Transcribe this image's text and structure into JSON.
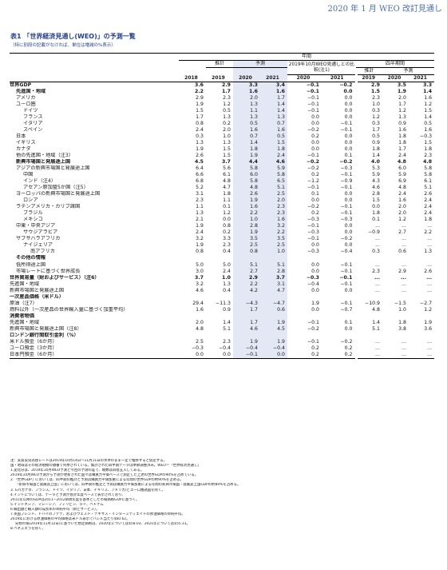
{
  "header_right": "2020 年 1 月 WEO 改訂見通し",
  "title": "表1 「世界経済見通し(WEO)」の予測一覧",
  "subtitle": "（特に別段の記載がなければ、単位は増減の%表示）",
  "head": {
    "year": "年間",
    "est": "推計",
    "proj": "予測",
    "diff": "2019年10月WEO見通しとの比較(注1)",
    "quarter": "四半期間",
    "qest": "推計",
    "qproj": "予測",
    "years": [
      "2018",
      "2019",
      "2020",
      "2021",
      "2020",
      "2021",
      "2019",
      "2020",
      "2021"
    ]
  },
  "rows": [
    {
      "label": "世界GDP",
      "indent": 0,
      "bold": true,
      "v": [
        "3.6",
        "2.9",
        "3.3",
        "3.4",
        "−0.1",
        "−0.2",
        "2.9",
        "3.5",
        "3.3"
      ]
    },
    {
      "label": "先進国・地域",
      "indent": 1,
      "bold": true,
      "v": [
        "2.2",
        "1.7",
        "1.6",
        "1.6",
        "−0.1",
        "0.0",
        "1.5",
        "1.9",
        "1.4"
      ]
    },
    {
      "label": "アメリカ",
      "indent": 1,
      "v": [
        "2.9",
        "2.3",
        "2.0",
        "1.7",
        "−0.1",
        "0.0",
        "2.3",
        "2.0",
        "1.6"
      ]
    },
    {
      "label": "ユーロ圏",
      "indent": 1,
      "v": [
        "1.9",
        "1.2",
        "1.3",
        "1.4",
        "−0.1",
        "0.0",
        "1.0",
        "1.7",
        "1.2"
      ]
    },
    {
      "label": "ドイツ",
      "indent": 2,
      "v": [
        "1.5",
        "0.5",
        "1.1",
        "1.4",
        "−0.1",
        "0.0",
        "0.3",
        "1.2",
        "1.5"
      ]
    },
    {
      "label": "フランス",
      "indent": 2,
      "v": [
        "1.7",
        "1.3",
        "1.3",
        "1.3",
        "0.0",
        "0.0",
        "1.2",
        "1.3",
        "1.4"
      ]
    },
    {
      "label": "イタリア",
      "indent": 2,
      "v": [
        "0.8",
        "0.2",
        "0.5",
        "0.7",
        "0.0",
        "−0.1",
        "0.3",
        "0.9",
        "0.5"
      ]
    },
    {
      "label": "スペイン",
      "indent": 2,
      "v": [
        "2.4",
        "2.0",
        "1.6",
        "1.6",
        "−0.2",
        "−0.1",
        "1.7",
        "1.6",
        "1.6"
      ]
    },
    {
      "label": "日本",
      "indent": 1,
      "v": [
        "0.3",
        "1.0",
        "0.7",
        "0.5",
        "0.2",
        "0.0",
        "0.5",
        "1.8",
        "−0.3"
      ]
    },
    {
      "label": "イギリス",
      "indent": 1,
      "v": [
        "1.3",
        "1.3",
        "1.4",
        "1.5",
        "0.0",
        "0.0",
        "0.9",
        "1.8",
        "1.5"
      ]
    },
    {
      "label": "カナダ",
      "indent": 1,
      "v": [
        "1.9",
        "1.5",
        "1.8",
        "1.8",
        "0.0",
        "0.0",
        "1.8",
        "1.7",
        "1.8"
      ]
    },
    {
      "label": "他の先進国・地域（注3）",
      "indent": 1,
      "v": [
        "2.6",
        "1.5",
        "1.9",
        "2.4",
        "−0.1",
        "0.1",
        "1.4",
        "2.4",
        "2.3"
      ]
    },
    {
      "label": "新興市場国と発展途上国",
      "indent": 1,
      "bold": true,
      "v": [
        "4.5",
        "3.7",
        "4.4",
        "4.6",
        "−0.2",
        "−0.2",
        "4.0",
        "4.8",
        "4.8"
      ]
    },
    {
      "label": "アジアの新興市場国と発展途上国",
      "indent": 1,
      "v": [
        "6.4",
        "5.6",
        "5.8",
        "5.9",
        "−0.2",
        "−0.3",
        "5.3",
        "6.0",
        "5.8"
      ]
    },
    {
      "label": "中国",
      "indent": 2,
      "v": [
        "6.6",
        "6.1",
        "6.0",
        "5.8",
        "0.2",
        "−0.1",
        "5.9",
        "5.9",
        "5.8"
      ]
    },
    {
      "label": "インド（注4）",
      "indent": 2,
      "v": [
        "6.8",
        "4.8",
        "5.8",
        "6.5",
        "−1.2",
        "−0.9",
        "4.3",
        "6.9",
        "6.1"
      ]
    },
    {
      "label": "アセアン原加盟5か国（注5）",
      "indent": 2,
      "v": [
        "5.2",
        "4.7",
        "4.8",
        "5.1",
        "−0.1",
        "−0.1",
        "4.6",
        "4.8",
        "5.1"
      ]
    },
    {
      "label": "ヨーロッパの新興市場国と発展途上国",
      "indent": 1,
      "v": [
        "3.1",
        "1.8",
        "2.6",
        "2.5",
        "0.1",
        "0.0",
        "2.8",
        "2.4",
        "2.6"
      ]
    },
    {
      "label": "ロシア",
      "indent": 2,
      "v": [
        "2.3",
        "1.1",
        "1.9",
        "2.0",
        "0.0",
        "0.0",
        "1.5",
        "1.6",
        "2.4"
      ]
    },
    {
      "label": "ラテンアメリカ・カリブ諸国",
      "indent": 1,
      "v": [
        "1.1",
        "0.1",
        "1.6",
        "2.3",
        "−0.2",
        "−0.1",
        "0.0",
        "2.0",
        "2.4"
      ]
    },
    {
      "label": "ブラジル",
      "indent": 2,
      "v": [
        "1.3",
        "1.2",
        "2.2",
        "2.3",
        "0.2",
        "−0.1",
        "1.8",
        "2.0",
        "2.4"
      ]
    },
    {
      "label": "メキシコ",
      "indent": 2,
      "v": [
        "2.1",
        "0.0",
        "1.0",
        "1.6",
        "−0.3",
        "−0.3",
        "0.1",
        "1.2",
        "1.8"
      ]
    },
    {
      "label": "中東・中央アジア",
      "indent": 1,
      "v": [
        "1.9",
        "0.8",
        "2.8",
        "3.2",
        "−0.1",
        "0.0",
        "...",
        "...",
        "..."
      ]
    },
    {
      "label": "サウジアラビア",
      "indent": 2,
      "v": [
        "2.4",
        "0.2",
        "1.9",
        "2.2",
        "−0.3",
        "0.0",
        "−0.9",
        "2.7",
        "2.2"
      ]
    },
    {
      "label": "サブサハラアフリカ",
      "indent": 1,
      "v": [
        "3.2",
        "3.3",
        "3.5",
        "3.5",
        "−0.1",
        "−0.2",
        "...",
        "...",
        "..."
      ]
    },
    {
      "label": "ナイジェリア",
      "indent": 2,
      "v": [
        "1.9",
        "2.3",
        "2.5",
        "2.5",
        "0.0",
        "0.0",
        "...",
        "...",
        "..."
      ]
    },
    {
      "label": "南アフリカ",
      "indent": 3,
      "v": [
        "0.8",
        "0.4",
        "0.8",
        "1.0",
        "−0.3",
        "−0.4",
        "0.3",
        "0.6",
        "1.3"
      ]
    },
    {
      "label": "その他の情報",
      "indent": 1,
      "bold": true,
      "v": [
        "",
        "",
        "",
        "",
        "",
        "",
        "",
        "",
        ""
      ]
    },
    {
      "label": "低所得途上国",
      "indent": 1,
      "v": [
        "5.0",
        "5.0",
        "5.1",
        "5.1",
        "0.0",
        "−0.1",
        "...",
        "...",
        "..."
      ]
    },
    {
      "label": "市場レートに基づく世界成長",
      "indent": 1,
      "v": [
        "3.0",
        "2.4",
        "2.7",
        "2.8",
        "0.0",
        "−0.1",
        "2.3",
        "2.9",
        "2.6"
      ]
    },
    {
      "label": "世界貿易量（財およびサービス）（注6）",
      "indent": 0,
      "bold": true,
      "v": [
        "3.7",
        "1.0",
        "2.9",
        "3.7",
        "−0.3",
        "−0.1",
        "...",
        "...",
        "..."
      ]
    },
    {
      "label": "先進国・地域",
      "indent": 0,
      "v": [
        "3.2",
        "1.3",
        "2.2",
        "3.1",
        "−0.4",
        "−0.1",
        "...",
        "...",
        "..."
      ]
    },
    {
      "label": "新興市場国と発展途上国",
      "indent": 0,
      "v": [
        "4.6",
        "0.4",
        "4.2",
        "4.7",
        "0.0",
        "0.0",
        "...",
        "...",
        "..."
      ]
    },
    {
      "label": "一次産品価格（米ドル）",
      "indent": 0,
      "bold": true,
      "v": [
        "",
        "",
        "",
        "",
        "",
        "",
        "",
        "",
        ""
      ]
    },
    {
      "label": "原油（注7）",
      "indent": 0,
      "v": [
        "29.4",
        "−11.3",
        "−4.3",
        "−4.7",
        "1.9",
        "−0.1",
        "−10.9",
        "−1.5",
        "−2.7"
      ]
    },
    {
      "label": "燃料以外（一次産品の世界輸入量に基づく加重平均）",
      "indent": 0,
      "v": [
        "1.6",
        "0.9",
        "1.7",
        "0.6",
        "0.0",
        "−0.7",
        "4.8",
        "1.0",
        "1.2"
      ]
    },
    {
      "label": "消費者物価",
      "indent": 0,
      "bold": true,
      "v": [
        "",
        "",
        "",
        "",
        "",
        "",
        "",
        "",
        ""
      ]
    },
    {
      "label": "先進国・地域",
      "indent": 0,
      "v": [
        "2.0",
        "1.4",
        "1.7",
        "1.9",
        "−0.1",
        "0.1",
        "1.4",
        "1.8",
        "1.9"
      ]
    },
    {
      "label": "新興市場国と発展途上国（注8）",
      "indent": 0,
      "v": [
        "4.8",
        "5.1",
        "4.6",
        "4.5",
        "−0.2",
        "0.0",
        "5.1",
        "3.8",
        "3.6"
      ]
    },
    {
      "label": "ロンドン銀行間取引金利（%）",
      "indent": 0,
      "bold": true,
      "v": [
        "",
        "",
        "",
        "",
        "",
        "",
        "",
        "",
        ""
      ]
    },
    {
      "label": "米ドル預金（6か月）",
      "indent": 0,
      "v": [
        "2.5",
        "2.3",
        "1.9",
        "1.9",
        "−0.1",
        "−0.2",
        "...",
        "...",
        "..."
      ]
    },
    {
      "label": "ユーロ預金（3か月）",
      "indent": 0,
      "v": [
        "−0.3",
        "−0.4",
        "−0.4",
        "−0.4",
        "0.2",
        "0.2",
        "...",
        "...",
        "..."
      ]
    },
    {
      "label": "日本円預金（6か月）",
      "indent": 0,
      "v": [
        "0.0",
        "0.0",
        "−0.1",
        "0.0",
        "0.2",
        "0.2",
        "...",
        "...",
        "..."
      ]
    }
  ],
  "notes": [
    "注：実質実効為替レートは2019年10月14日〜11月11日の水準のまま一定で推移すると仮定する。",
    "国・地域はその経済規模の順番で列挙されている。集計された四半期データは季節調整済み。WEO＝「世界経済見通し」",
    "1.変化分は、2019年10月WEO予測と今回の予測の差で、端数は四捨五入してある。",
    "2019年10月WEO予測から予測が更新された国々は購買力平価ベースで測定した上述の世界GDPの90%を占めている。",
    "2.「世界GDP」においては、四半期の推計と予測は購買力平価加重による年間の世界GDPの約90%を占める。",
    "「新興市場国と発展途上国」においては、四半期の推定と予測は購買力平価加重による年間の新興市場国・発展途上国GDPの約80%を占める。",
    "3. G7(カナダ、フランス、ドイツ、イタリア、日本、イギリス、アメリカ)とユーロ圏諸国を除く。",
    "4.インドについては、データと予測が会計年度ベースで表示されており、",
    "2011年以降のGDPは2011−2012財政年度を基準とした市場価格GDPに基づく。",
    "5.インドネシア、マレーシア、フィリピン、タイ、ベトナム",
    "6.輸出額と輸入額の成長率の単純平均（財とサービス）。",
    "7.英国ブレント、ドバイのファテ、およびウェスト・テキサス・インターミディエイトの原油価格の単純平均。",
    "2019年における原油価格の平均価格は米ドル表示でバレル当たり$60.62。",
    "先物市場(2019年11月12日)に基づいた想定価格は、2020年については$58.03、2021年については$55.31。",
    "8.ベネズエラを除く。"
  ]
}
